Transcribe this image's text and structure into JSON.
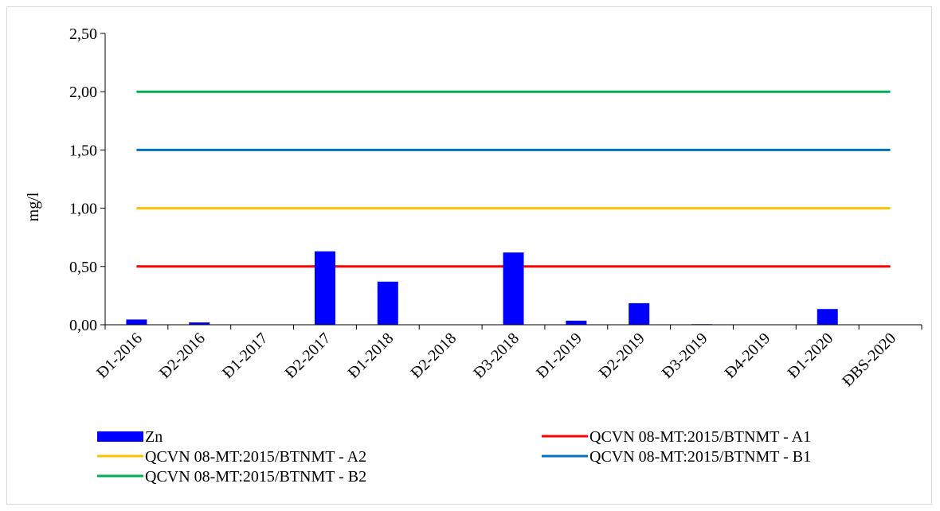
{
  "chart_data": {
    "type": "bar",
    "ylabel": "mg/l",
    "xlabel": "",
    "title": "",
    "ylim": [
      0,
      2.5
    ],
    "yticks": [
      "0,00",
      "0,50",
      "1,00",
      "1,50",
      "2,00",
      "2,50"
    ],
    "ytick_values": [
      0,
      0.5,
      1.0,
      1.5,
      2.0,
      2.5
    ],
    "categories": [
      "Đ1-2016",
      "Đ2-2016",
      "Đ1-2017",
      "Đ2-2017",
      "Đ1-2018",
      "Đ2-2018",
      "Đ3-2018",
      "Đ1-2019",
      "Đ2-2019",
      "Đ3-2019",
      "Đ4-2019",
      "Đ1-2020",
      "ĐBS-2020"
    ],
    "series": [
      {
        "name": "Zn",
        "kind": "bar",
        "color": "#0000ff",
        "values": [
          0.045,
          0.02,
          0,
          0.63,
          0.37,
          0,
          0.62,
          0.035,
          0.185,
          0.005,
          0,
          0.135,
          0
        ]
      },
      {
        "name": "QCVN 08-MT:2015/BTNMT - A1",
        "kind": "line",
        "color": "#ff0000",
        "value": 0.5
      },
      {
        "name": "QCVN 08-MT:2015/BTNMT - A2",
        "kind": "line",
        "color": "#ffc000",
        "value": 1.0
      },
      {
        "name": "QCVN 08-MT:2015/BTNMT - B1",
        "kind": "line",
        "color": "#0070c0",
        "value": 1.5
      },
      {
        "name": "QCVN 08-MT:2015/BTNMT - B2",
        "kind": "line",
        "color": "#00b050",
        "value": 2.0
      }
    ],
    "legend_position": "bottom",
    "grid": false
  }
}
